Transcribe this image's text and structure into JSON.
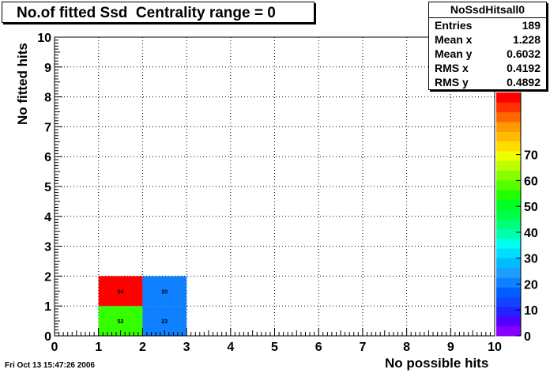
{
  "title": "No.of fitted Ssd  Centrality range = 0",
  "stats": {
    "name": "NoSsdHitsall0",
    "rows": [
      {
        "key": "Entries",
        "value": "189"
      },
      {
        "key": "Mean x",
        "value": "1.228"
      },
      {
        "key": "Mean y",
        "value": "0.6032"
      },
      {
        "key": "RMS x",
        "value": "0.4192"
      },
      {
        "key": "RMS y",
        "value": "0.4892"
      }
    ]
  },
  "footer": {
    "date": "Fri Oct 13 15:47:26 2006"
  },
  "chart_data": {
    "type": "heatmap",
    "title": "No.of fitted Ssd  Centrality range = 0",
    "xlabel": "No possible hits",
    "ylabel": "No fitted hits",
    "xlim": [
      0,
      10
    ],
    "ylim": [
      0,
      10
    ],
    "grid": true,
    "x_ticks": [
      "0",
      "1",
      "2",
      "3",
      "4",
      "5",
      "6",
      "7",
      "8",
      "9",
      "10"
    ],
    "y_ticks": [
      "0",
      "1",
      "2",
      "3",
      "4",
      "5",
      "6",
      "7",
      "8",
      "9",
      "10"
    ],
    "cells": [
      {
        "x": [
          1,
          2
        ],
        "y": [
          0,
          1
        ],
        "value": 52,
        "color": "#33ff00"
      },
      {
        "x": [
          1,
          2
        ],
        "y": [
          1,
          2
        ],
        "value": 94,
        "color": "#ff0000"
      },
      {
        "x": [
          2,
          3
        ],
        "y": [
          0,
          1
        ],
        "value": 23,
        "color": "#0f80ff"
      },
      {
        "x": [
          2,
          3
        ],
        "y": [
          1,
          2
        ],
        "value": 20,
        "color": "#0f80ff"
      }
    ],
    "colorbar": {
      "min": 0,
      "max": 94,
      "ticks": [
        "0",
        "10",
        "20",
        "30",
        "40",
        "50",
        "60",
        "70"
      ],
      "colors": [
        "#8800ff",
        "#5500ff",
        "#2222ff",
        "#1144ff",
        "#0060ff",
        "#0f80ff",
        "#1f9dff",
        "#00bbff",
        "#00ddff",
        "#00ffee",
        "#00ffaa",
        "#00ff77",
        "#00ff44",
        "#00ff22",
        "#22ff00",
        "#55ff00",
        "#88ff00",
        "#bbff00",
        "#eeff00",
        "#ffdd00",
        "#ffbb00",
        "#ff9900",
        "#ff6600",
        "#ff3300",
        "#ff0000"
      ]
    }
  }
}
